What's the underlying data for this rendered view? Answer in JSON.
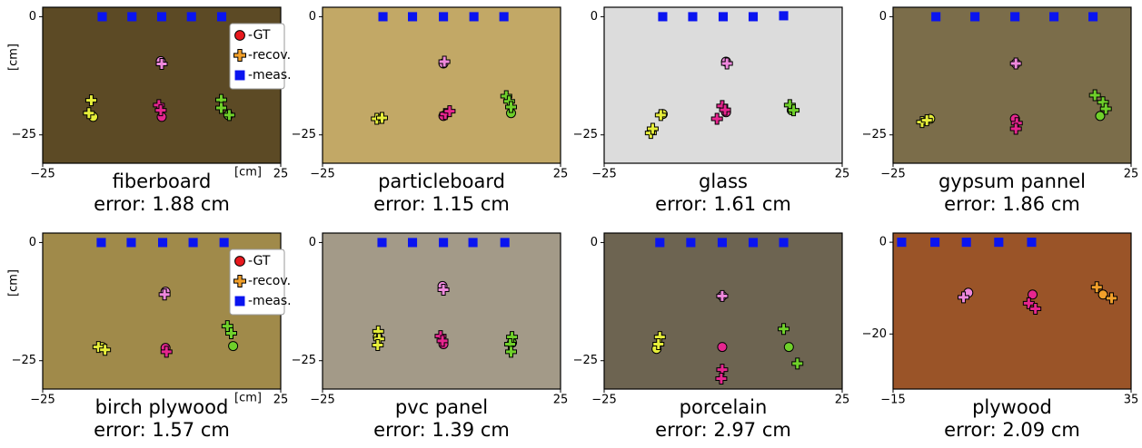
{
  "chart_data": [
    {
      "type": "scatter",
      "title": "fiberboard",
      "subtitle": "error: 1.88 cm",
      "background": "#5c4a25",
      "xlabel": "[cm]",
      "ylabel": "[cm]",
      "legend": "upper right",
      "xlim": [
        -25,
        25
      ],
      "ylim": [
        -31,
        2
      ],
      "xticks": [
        {
          "value": -25,
          "label": "−25"
        },
        25
      ],
      "yticks": [
        0,
        {
          "value": -25,
          "label": "−25"
        }
      ],
      "series": [
        {
          "name": "-GT",
          "marker": "circle",
          "color": "#e8191e",
          "x": [
            -14.4,
            -0.2,
            0,
            14
          ],
          "y": [
            -21.2,
            -9.4,
            -21.2,
            -20.8
          ],
          "colors": [
            "#e6ee3a",
            "#ee88dc",
            "#e6268f",
            "#6fd02a"
          ]
        },
        {
          "name": "-recov.",
          "marker": "plus",
          "color": "#f2a02a",
          "x": [
            -14.8,
            -15.3,
            0,
            -0.6,
            -0.2,
            12.5,
            12.5,
            14.2
          ],
          "y": [
            -17.7,
            -20.4,
            -10,
            -18.7,
            -19.8,
            -17.6,
            -19.3,
            -20.8
          ],
          "colors": [
            "#e6ee3a",
            "#e6ee3a",
            "#ee88dc",
            "#e6268f",
            "#e6268f",
            "#6fd02a",
            "#6fd02a",
            "#6fd02a"
          ]
        },
        {
          "name": "-meas.",
          "marker": "square",
          "color": "#0a14f0",
          "x": [
            -12.5,
            -6.25,
            0,
            6.25,
            12.6
          ],
          "y": [
            0,
            0,
            0,
            0,
            0
          ]
        }
      ]
    },
    {
      "type": "scatter",
      "title": "particleboard",
      "subtitle": "error: 1.15 cm",
      "background": "#c2a866",
      "xlim": [
        -25,
        25
      ],
      "ylim": [
        -31,
        2
      ],
      "xticks": [
        {
          "value": -25,
          "label": "−25"
        },
        25
      ],
      "yticks": [
        0,
        {
          "value": -25,
          "label": "−25"
        }
      ],
      "series": [
        {
          "name": "-GT",
          "marker": "circle",
          "color": "#e8191e",
          "x": [
            0.4,
            -12.9,
            0.4,
            14.6
          ],
          "y": [
            -9.9,
            -21.6,
            -21,
            -20.4
          ],
          "colors": [
            "#ee88dc",
            "#e6ee3a",
            "#e6268f",
            "#6fd02a"
          ]
        },
        {
          "name": "-recov.",
          "marker": "plus",
          "color": "#f2a02a",
          "x": [
            0.6,
            -13.6,
            -12.5,
            0.8,
            1.7,
            13.6,
            14.2,
            14.6
          ],
          "y": [
            -9.5,
            -21.6,
            -21.4,
            -20.6,
            -20,
            -16.8,
            -17.9,
            -19.1
          ],
          "colors": [
            "#ee88dc",
            "#e6ee3a",
            "#e6ee3a",
            "#e6268f",
            "#e6268f",
            "#6fd02a",
            "#6fd02a",
            "#6fd02a"
          ]
        },
        {
          "name": "-meas.",
          "marker": "square",
          "color": "#0a14f0",
          "x": [
            -12.3,
            -6.1,
            0.4,
            6.8,
            13.1
          ],
          "y": [
            0,
            0,
            0,
            0,
            0
          ]
        }
      ]
    },
    {
      "type": "scatter",
      "title": "glass",
      "subtitle": "error: 1.61 cm",
      "background": "#dcdcdc",
      "xlim": [
        -25,
        25
      ],
      "ylim": [
        -31,
        2
      ],
      "xticks": [
        {
          "value": -25,
          "label": "−25"
        },
        25
      ],
      "yticks": [
        0,
        {
          "value": -25,
          "label": "−25"
        }
      ],
      "series": [
        {
          "name": "-GT",
          "marker": "circle",
          "color": "#e8191e",
          "x": [
            0.6,
            -12.7,
            0.6,
            14.4
          ],
          "y": [
            -9.5,
            -20.6,
            -20.2,
            -19.8
          ],
          "colors": [
            "#ee88dc",
            "#e6ee3a",
            "#e6268f",
            "#6fd02a"
          ]
        },
        {
          "name": "-recov.",
          "marker": "plus",
          "color": "#f2a02a",
          "x": [
            0.8,
            -15.2,
            -14.8,
            -13.1,
            -1.3,
            -0.2,
            0.4,
            14,
            14.8
          ],
          "y": [
            -9.9,
            -24.6,
            -23.7,
            -20.8,
            -21.6,
            -18.9,
            -19.7,
            -18.7,
            -19.8
          ],
          "colors": [
            "#ee88dc",
            "#e6ee3a",
            "#e6ee3a",
            "#e6ee3a",
            "#e6268f",
            "#e6268f",
            "#e6268f",
            "#6fd02a",
            "#6fd02a"
          ]
        },
        {
          "name": "-meas.",
          "marker": "square",
          "color": "#0a14f0",
          "x": [
            -12.7,
            -6.4,
            0,
            6.3,
            12.7
          ],
          "y": [
            0,
            0,
            0,
            0,
            0.2
          ]
        }
      ]
    },
    {
      "type": "scatter",
      "title": "gypsum pannel",
      "subtitle": "error: 1.86 cm",
      "background": "#7b6d4a",
      "xlim": [
        -25,
        25
      ],
      "ylim": [
        -31,
        2
      ],
      "xticks": [
        {
          "value": -25,
          "label": "−25"
        },
        25
      ],
      "yticks": [
        0,
        {
          "value": -25,
          "label": "−25"
        }
      ],
      "series": [
        {
          "name": "-GT",
          "marker": "circle",
          "color": "#e8191e",
          "x": [
            0.8,
            -17.2,
            0.6,
            18.5
          ],
          "y": [
            -9.9,
            -21.6,
            -21.6,
            -21
          ],
          "colors": [
            "#ee88dc",
            "#e6ee3a",
            "#e6268f",
            "#6fd02a"
          ]
        },
        {
          "name": "-recov.",
          "marker": "plus",
          "color": "#f2a02a",
          "x": [
            0.8,
            -18.9,
            -17.9,
            1,
            0.8,
            17.4,
            19.1,
            19.7
          ],
          "y": [
            -9.9,
            -22.3,
            -21.9,
            -22.5,
            -23.7,
            -16.6,
            -18.1,
            -19.5
          ],
          "colors": [
            "#ee88dc",
            "#e6ee3a",
            "#e6ee3a",
            "#e6268f",
            "#e6268f",
            "#6fd02a",
            "#6fd02a",
            "#6fd02a"
          ]
        },
        {
          "name": "-meas.",
          "marker": "square",
          "color": "#0a14f0",
          "x": [
            -16,
            -7.8,
            0.6,
            8.8,
            17
          ],
          "y": [
            0,
            0,
            0,
            0,
            0
          ]
        }
      ]
    },
    {
      "type": "scatter",
      "title": "birch plywood",
      "subtitle": "error: 1.57 cm",
      "background": "#a08a4a",
      "xlabel": "[cm]",
      "ylabel": "[cm]",
      "legend": "upper right",
      "xlim": [
        -25,
        25
      ],
      "ylim": [
        -31,
        2
      ],
      "xticks": [
        {
          "value": -25,
          "label": "−25"
        },
        25
      ],
      "yticks": [
        0,
        {
          "value": -25,
          "label": "−25"
        }
      ],
      "series": [
        {
          "name": "-GT",
          "marker": "circle",
          "color": "#e8191e",
          "x": [
            0.8,
            -12.5,
            0.8,
            15
          ],
          "y": [
            -10.4,
            -22.1,
            -22.3,
            -21.9
          ],
          "colors": [
            "#ee88dc",
            "#e6ee3a",
            "#e6268f",
            "#6fd02a"
          ]
        },
        {
          "name": "-recov.",
          "marker": "plus",
          "color": "#f2a02a",
          "x": [
            0.6,
            -13.3,
            -11.9,
            1,
            13.8,
            14.6
          ],
          "y": [
            -11,
            -22.1,
            -22.7,
            -23.1,
            -17.7,
            -19.2
          ],
          "colors": [
            "#ee88dc",
            "#e6ee3a",
            "#e6ee3a",
            "#e6268f",
            "#6fd02a",
            "#6fd02a"
          ]
        },
        {
          "name": "-meas.",
          "marker": "square",
          "color": "#0a14f0",
          "x": [
            -12.7,
            -6.4,
            0.2,
            6.6,
            13.1
          ],
          "y": [
            0,
            0,
            0,
            0,
            0
          ]
        }
      ]
    },
    {
      "type": "scatter",
      "title": "pvc panel",
      "subtitle": "error: 1.39 cm",
      "background": "#a39a88",
      "xlim": [
        -25,
        25
      ],
      "ylim": [
        -31,
        2
      ],
      "xticks": [
        {
          "value": -25,
          "label": "−25"
        },
        25
      ],
      "yticks": [
        0,
        {
          "value": -25,
          "label": "−25"
        }
      ],
      "series": [
        {
          "name": "-GT",
          "marker": "circle",
          "color": "#e8191e",
          "x": [
            0.2,
            -13.4,
            0.4,
            14.8
          ],
          "y": [
            -9.2,
            -20,
            -21.5,
            -21.2
          ],
          "colors": [
            "#ee88dc",
            "#e6ee3a",
            "#e6268f",
            "#6fd02a"
          ]
        },
        {
          "name": "-recov.",
          "marker": "plus",
          "color": "#f2a02a",
          "x": [
            0.4,
            -13.3,
            -13.1,
            -13.4,
            -0.2,
            0.2,
            14.8,
            14.4,
            14.6
          ],
          "y": [
            -10,
            -18.8,
            -20.4,
            -21.7,
            -19.8,
            -20.8,
            -20,
            -21.5,
            -23.1
          ],
          "colors": [
            "#ee88dc",
            "#e6ee3a",
            "#e6ee3a",
            "#e6ee3a",
            "#e6268f",
            "#e6268f",
            "#6fd02a",
            "#6fd02a",
            "#6fd02a"
          ]
        },
        {
          "name": "-meas.",
          "marker": "square",
          "color": "#0a14f0",
          "x": [
            -12.5,
            -6.1,
            0.4,
            6.6,
            13.3
          ],
          "y": [
            0,
            0,
            0,
            0,
            0
          ]
        }
      ]
    },
    {
      "type": "scatter",
      "title": "porcelain",
      "subtitle": "error: 2.97 cm",
      "background": "#6d6451",
      "xlim": [
        -25,
        25
      ],
      "ylim": [
        -31,
        2
      ],
      "xticks": [
        {
          "value": -25,
          "label": "−25"
        },
        25
      ],
      "yticks": [
        0,
        {
          "value": -25,
          "label": "−25"
        }
      ],
      "series": [
        {
          "name": "-GT",
          "marker": "circle",
          "color": "#e8191e",
          "x": [
            -0.2,
            -14,
            -0.2,
            13.8
          ],
          "y": [
            -11.3,
            -22.5,
            -22.1,
            -22.1
          ],
          "colors": [
            "#ee88dc",
            "#e6ee3a",
            "#e6268f",
            "#6fd02a"
          ]
        },
        {
          "name": "-recov.",
          "marker": "plus",
          "color": "#f2a02a",
          "x": [
            -0.2,
            -13.3,
            -13.6,
            -0.2,
            -0.4,
            12.7,
            15.6
          ],
          "y": [
            -11.3,
            -20,
            -21.5,
            -26.9,
            -28.8,
            -18.3,
            -25.6
          ],
          "colors": [
            "#ee88dc",
            "#e6ee3a",
            "#e6ee3a",
            "#e6268f",
            "#e6268f",
            "#6fd02a",
            "#6fd02a"
          ]
        },
        {
          "name": "-meas.",
          "marker": "square",
          "color": "#0a14f0",
          "x": [
            -13.3,
            -6.8,
            -0.2,
            6.3,
            12.7
          ],
          "y": [
            0,
            0,
            0,
            0,
            0
          ]
        }
      ]
    },
    {
      "type": "scatter",
      "title": "plywood",
      "subtitle": "error: 2.09 cm",
      "background": "#9a5428",
      "xlim": [
        -15,
        35
      ],
      "ylim": [
        -32,
        2
      ],
      "xticks": [
        {
          "value": -15,
          "label": "−15"
        },
        35
      ],
      "yticks": [
        0,
        {
          "value": -20,
          "label": "−20"
        }
      ],
      "series": [
        {
          "name": "-GT",
          "marker": "circle",
          "color": "#e8191e",
          "x": [
            0.8,
            14.3,
            29.1
          ],
          "y": [
            -11,
            -11.4,
            -11.4
          ],
          "colors": [
            "#ee88dc",
            "#e6268f",
            "#f2a02a"
          ]
        },
        {
          "name": "-recov.",
          "marker": "plus",
          "color": "#f2a02a",
          "x": [
            -0.2,
            13.5,
            14.9,
            27.8,
            30.9
          ],
          "y": [
            -12,
            -13.3,
            -14.5,
            -9.8,
            -12.2
          ],
          "colors": [
            "#ee88dc",
            "#e6268f",
            "#e6268f",
            "#f2a02a",
            "#f2a02a"
          ]
        },
        {
          "name": "-meas.",
          "marker": "square",
          "color": "#0a14f0",
          "x": [
            -13.2,
            -6.2,
            0.4,
            7.2,
            14.1
          ],
          "y": [
            0,
            0,
            0,
            0,
            0
          ]
        }
      ]
    }
  ]
}
